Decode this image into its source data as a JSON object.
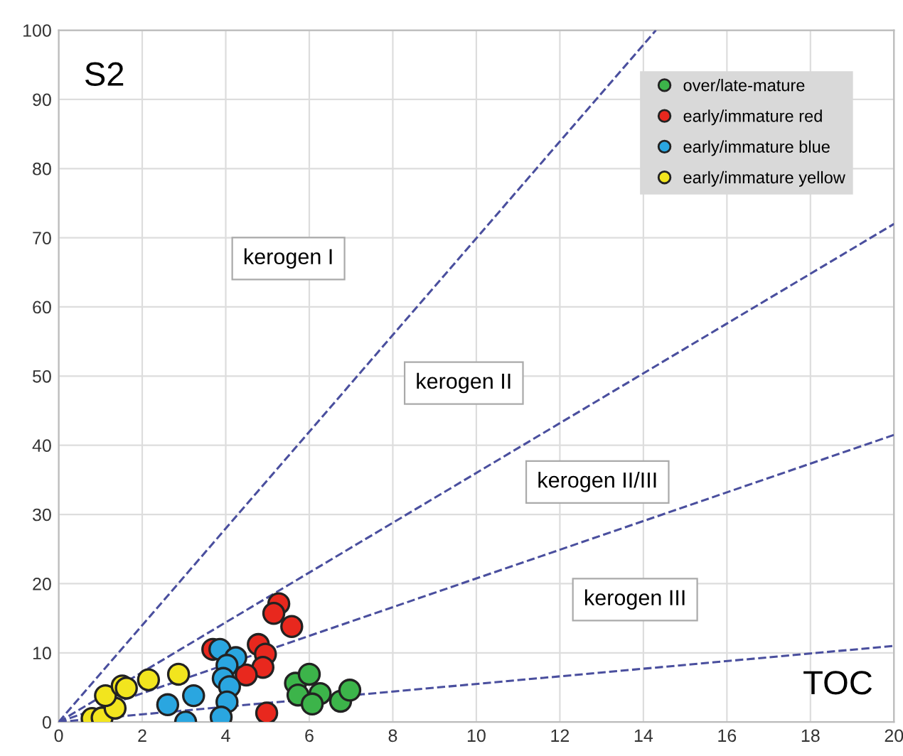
{
  "chart_data": {
    "type": "scatter",
    "xlabel": "TOC",
    "ylabel": "S2",
    "xlim": [
      0,
      20
    ],
    "ylim": [
      0,
      100
    ],
    "xticks": [
      0,
      2,
      4,
      6,
      8,
      10,
      12,
      14,
      16,
      18,
      20
    ],
    "yticks": [
      0,
      10,
      20,
      30,
      40,
      50,
      60,
      70,
      80,
      90,
      100
    ],
    "grid": true,
    "legend": "top right",
    "marker": "circle",
    "series": [
      {
        "name": "over/late-mature",
        "color": "#3cb44a",
        "x": [
          5.67,
          6.0,
          5.73,
          6.26,
          6.07,
          6.75,
          6.97
        ],
        "values": [
          5.6,
          6.9,
          3.9,
          4.1,
          2.6,
          3.0,
          4.6
        ]
      },
      {
        "name": "early/immature red",
        "color": "#e8281e",
        "x": [
          3.69,
          4.78,
          4.95,
          4.89,
          4.49,
          5.27,
          5.15,
          5.58,
          4.98
        ],
        "values": [
          10.5,
          11.2,
          9.8,
          7.9,
          6.8,
          17.1,
          15.7,
          13.8,
          1.3
        ]
      },
      {
        "name": "early/immature blue",
        "color": "#2aa6e0",
        "x": [
          3.86,
          4.24,
          4.03,
          3.94,
          4.09,
          4.03,
          3.89,
          3.23,
          2.61,
          3.04
        ],
        "values": [
          10.5,
          9.3,
          8.2,
          6.3,
          5.1,
          2.9,
          0.7,
          3.8,
          2.5,
          0
        ]
      },
      {
        "name": "early/immature yellow",
        "color": "#f2e51e",
        "x": [
          0.8,
          1.04,
          1.35,
          1.12,
          1.52,
          1.62,
          2.15,
          2.87
        ],
        "values": [
          0.5,
          0.6,
          2.0,
          3.8,
          5.2,
          4.9,
          6.1,
          6.9
        ]
      },
      {
        "type": "line",
        "line_style": "dashed",
        "marker": "none",
        "color": "#4a4f9e",
        "x": [
          0,
          14.3
        ],
        "values": [
          0,
          100
        ]
      },
      {
        "type": "line",
        "line_style": "dashed",
        "marker": "none",
        "color": "#4a4f9e",
        "x": [
          0,
          20
        ],
        "values": [
          0,
          72
        ]
      },
      {
        "type": "line",
        "line_style": "dashed",
        "marker": "none",
        "color": "#4a4f9e",
        "x": [
          0,
          20
        ],
        "values": [
          0,
          41.5
        ]
      },
      {
        "type": "line",
        "line_style": "dashed",
        "marker": "none",
        "color": "#4a4f9e",
        "x": [
          0,
          20
        ],
        "values": [
          0,
          11
        ]
      }
    ],
    "annotations": [
      "kerogen I",
      "kerogen II",
      "kerogen II/III",
      "kerogen III"
    ]
  }
}
